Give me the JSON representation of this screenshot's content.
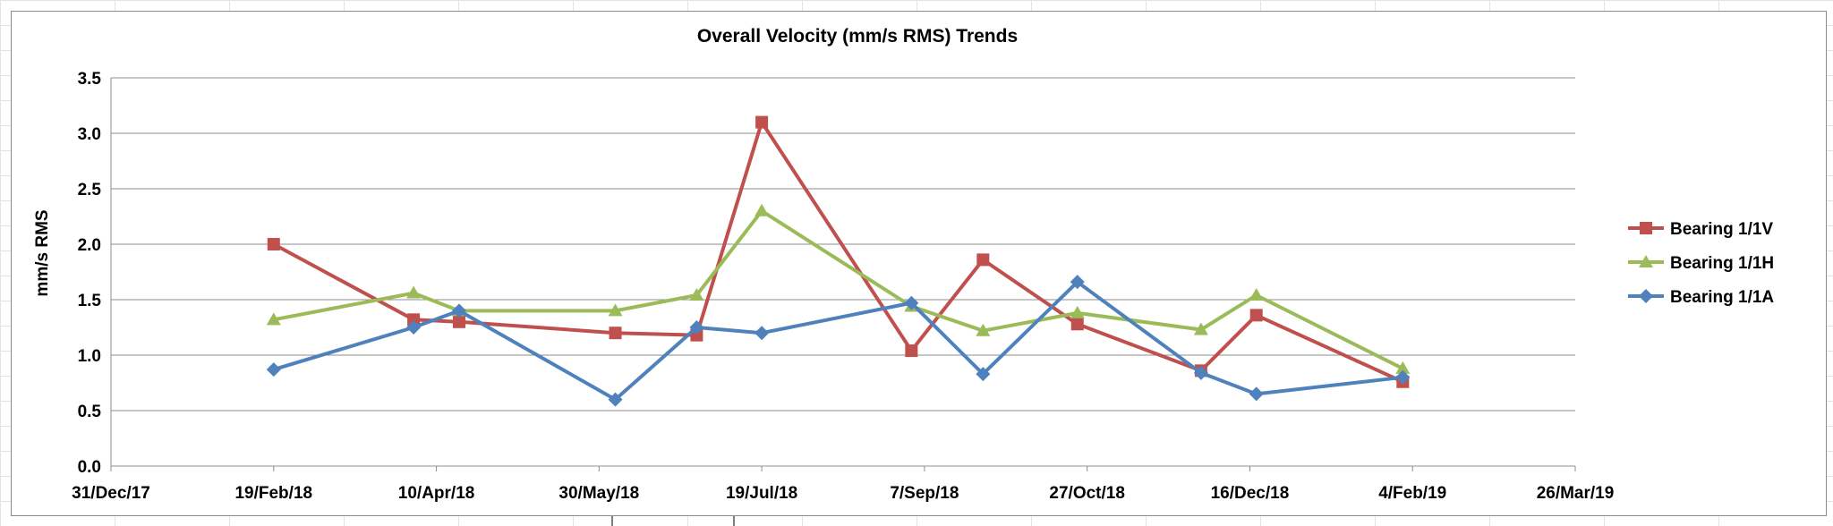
{
  "chart_data": {
    "type": "line",
    "title": "Overall Velocity (mm/s RMS) Trends",
    "xlabel": "",
    "ylabel": "mm/s RMS",
    "ylim": [
      0,
      3.5
    ],
    "yticks": [
      "0.0",
      "0.5",
      "1.0",
      "1.5",
      "2.0",
      "2.5",
      "3.0",
      "3.5"
    ],
    "xlim": [
      "2017-12-31",
      "2019-03-26"
    ],
    "xticks": [
      {
        "date": "2017-12-31",
        "label": "31/Dec/17"
      },
      {
        "date": "2018-02-19",
        "label": "19/Feb/18"
      },
      {
        "date": "2018-04-10",
        "label": "10/Apr/18"
      },
      {
        "date": "2018-05-30",
        "label": "30/May/18"
      },
      {
        "date": "2018-07-19",
        "label": "19/Jul/18"
      },
      {
        "date": "2018-09-07",
        "label": "7/Sep/18"
      },
      {
        "date": "2018-10-27",
        "label": "27/Oct/18"
      },
      {
        "date": "2018-12-16",
        "label": "16/Dec/18"
      },
      {
        "date": "2019-02-04",
        "label": "4/Feb/19"
      },
      {
        "date": "2019-03-26",
        "label": "26/Mar/19"
      }
    ],
    "grid": true,
    "legend_position": "right",
    "series": [
      {
        "name": "Bearing 1/1V",
        "color": "#c0504d",
        "marker": "square",
        "points": [
          {
            "x": "2018-02-19",
            "y": 2.0
          },
          {
            "x": "2018-04-03",
            "y": 1.32
          },
          {
            "x": "2018-04-17",
            "y": 1.3
          },
          {
            "x": "2018-06-04",
            "y": 1.2
          },
          {
            "x": "2018-06-29",
            "y": 1.18
          },
          {
            "x": "2018-07-19",
            "y": 3.1
          },
          {
            "x": "2018-09-03",
            "y": 1.04
          },
          {
            "x": "2018-09-25",
            "y": 1.86
          },
          {
            "x": "2018-10-24",
            "y": 1.28
          },
          {
            "x": "2018-12-01",
            "y": 0.86
          },
          {
            "x": "2018-12-18",
            "y": 1.36
          },
          {
            "x": "2019-02-01",
            "y": 0.76
          }
        ]
      },
      {
        "name": "Bearing 1/1H",
        "color": "#9bbb59",
        "marker": "triangle",
        "points": [
          {
            "x": "2018-02-19",
            "y": 1.32
          },
          {
            "x": "2018-04-03",
            "y": 1.56
          },
          {
            "x": "2018-04-17",
            "y": 1.4
          },
          {
            "x": "2018-06-04",
            "y": 1.4
          },
          {
            "x": "2018-06-29",
            "y": 1.54
          },
          {
            "x": "2018-07-19",
            "y": 2.3
          },
          {
            "x": "2018-09-03",
            "y": 1.44
          },
          {
            "x": "2018-09-25",
            "y": 1.22
          },
          {
            "x": "2018-10-24",
            "y": 1.38
          },
          {
            "x": "2018-12-01",
            "y": 1.23
          },
          {
            "x": "2018-12-18",
            "y": 1.54
          },
          {
            "x": "2019-02-01",
            "y": 0.88
          }
        ]
      },
      {
        "name": "Bearing 1/1A",
        "color": "#4f81bd",
        "marker": "diamond",
        "points": [
          {
            "x": "2018-02-19",
            "y": 0.87
          },
          {
            "x": "2018-04-03",
            "y": 1.25
          },
          {
            "x": "2018-04-17",
            "y": 1.4
          },
          {
            "x": "2018-06-04",
            "y": 0.6
          },
          {
            "x": "2018-06-29",
            "y": 1.25
          },
          {
            "x": "2018-07-19",
            "y": 1.2
          },
          {
            "x": "2018-09-03",
            "y": 1.47
          },
          {
            "x": "2018-09-25",
            "y": 0.83
          },
          {
            "x": "2018-10-24",
            "y": 1.66
          },
          {
            "x": "2018-12-01",
            "y": 0.84
          },
          {
            "x": "2018-12-18",
            "y": 0.65
          },
          {
            "x": "2019-02-01",
            "y": 0.8
          }
        ]
      }
    ]
  }
}
